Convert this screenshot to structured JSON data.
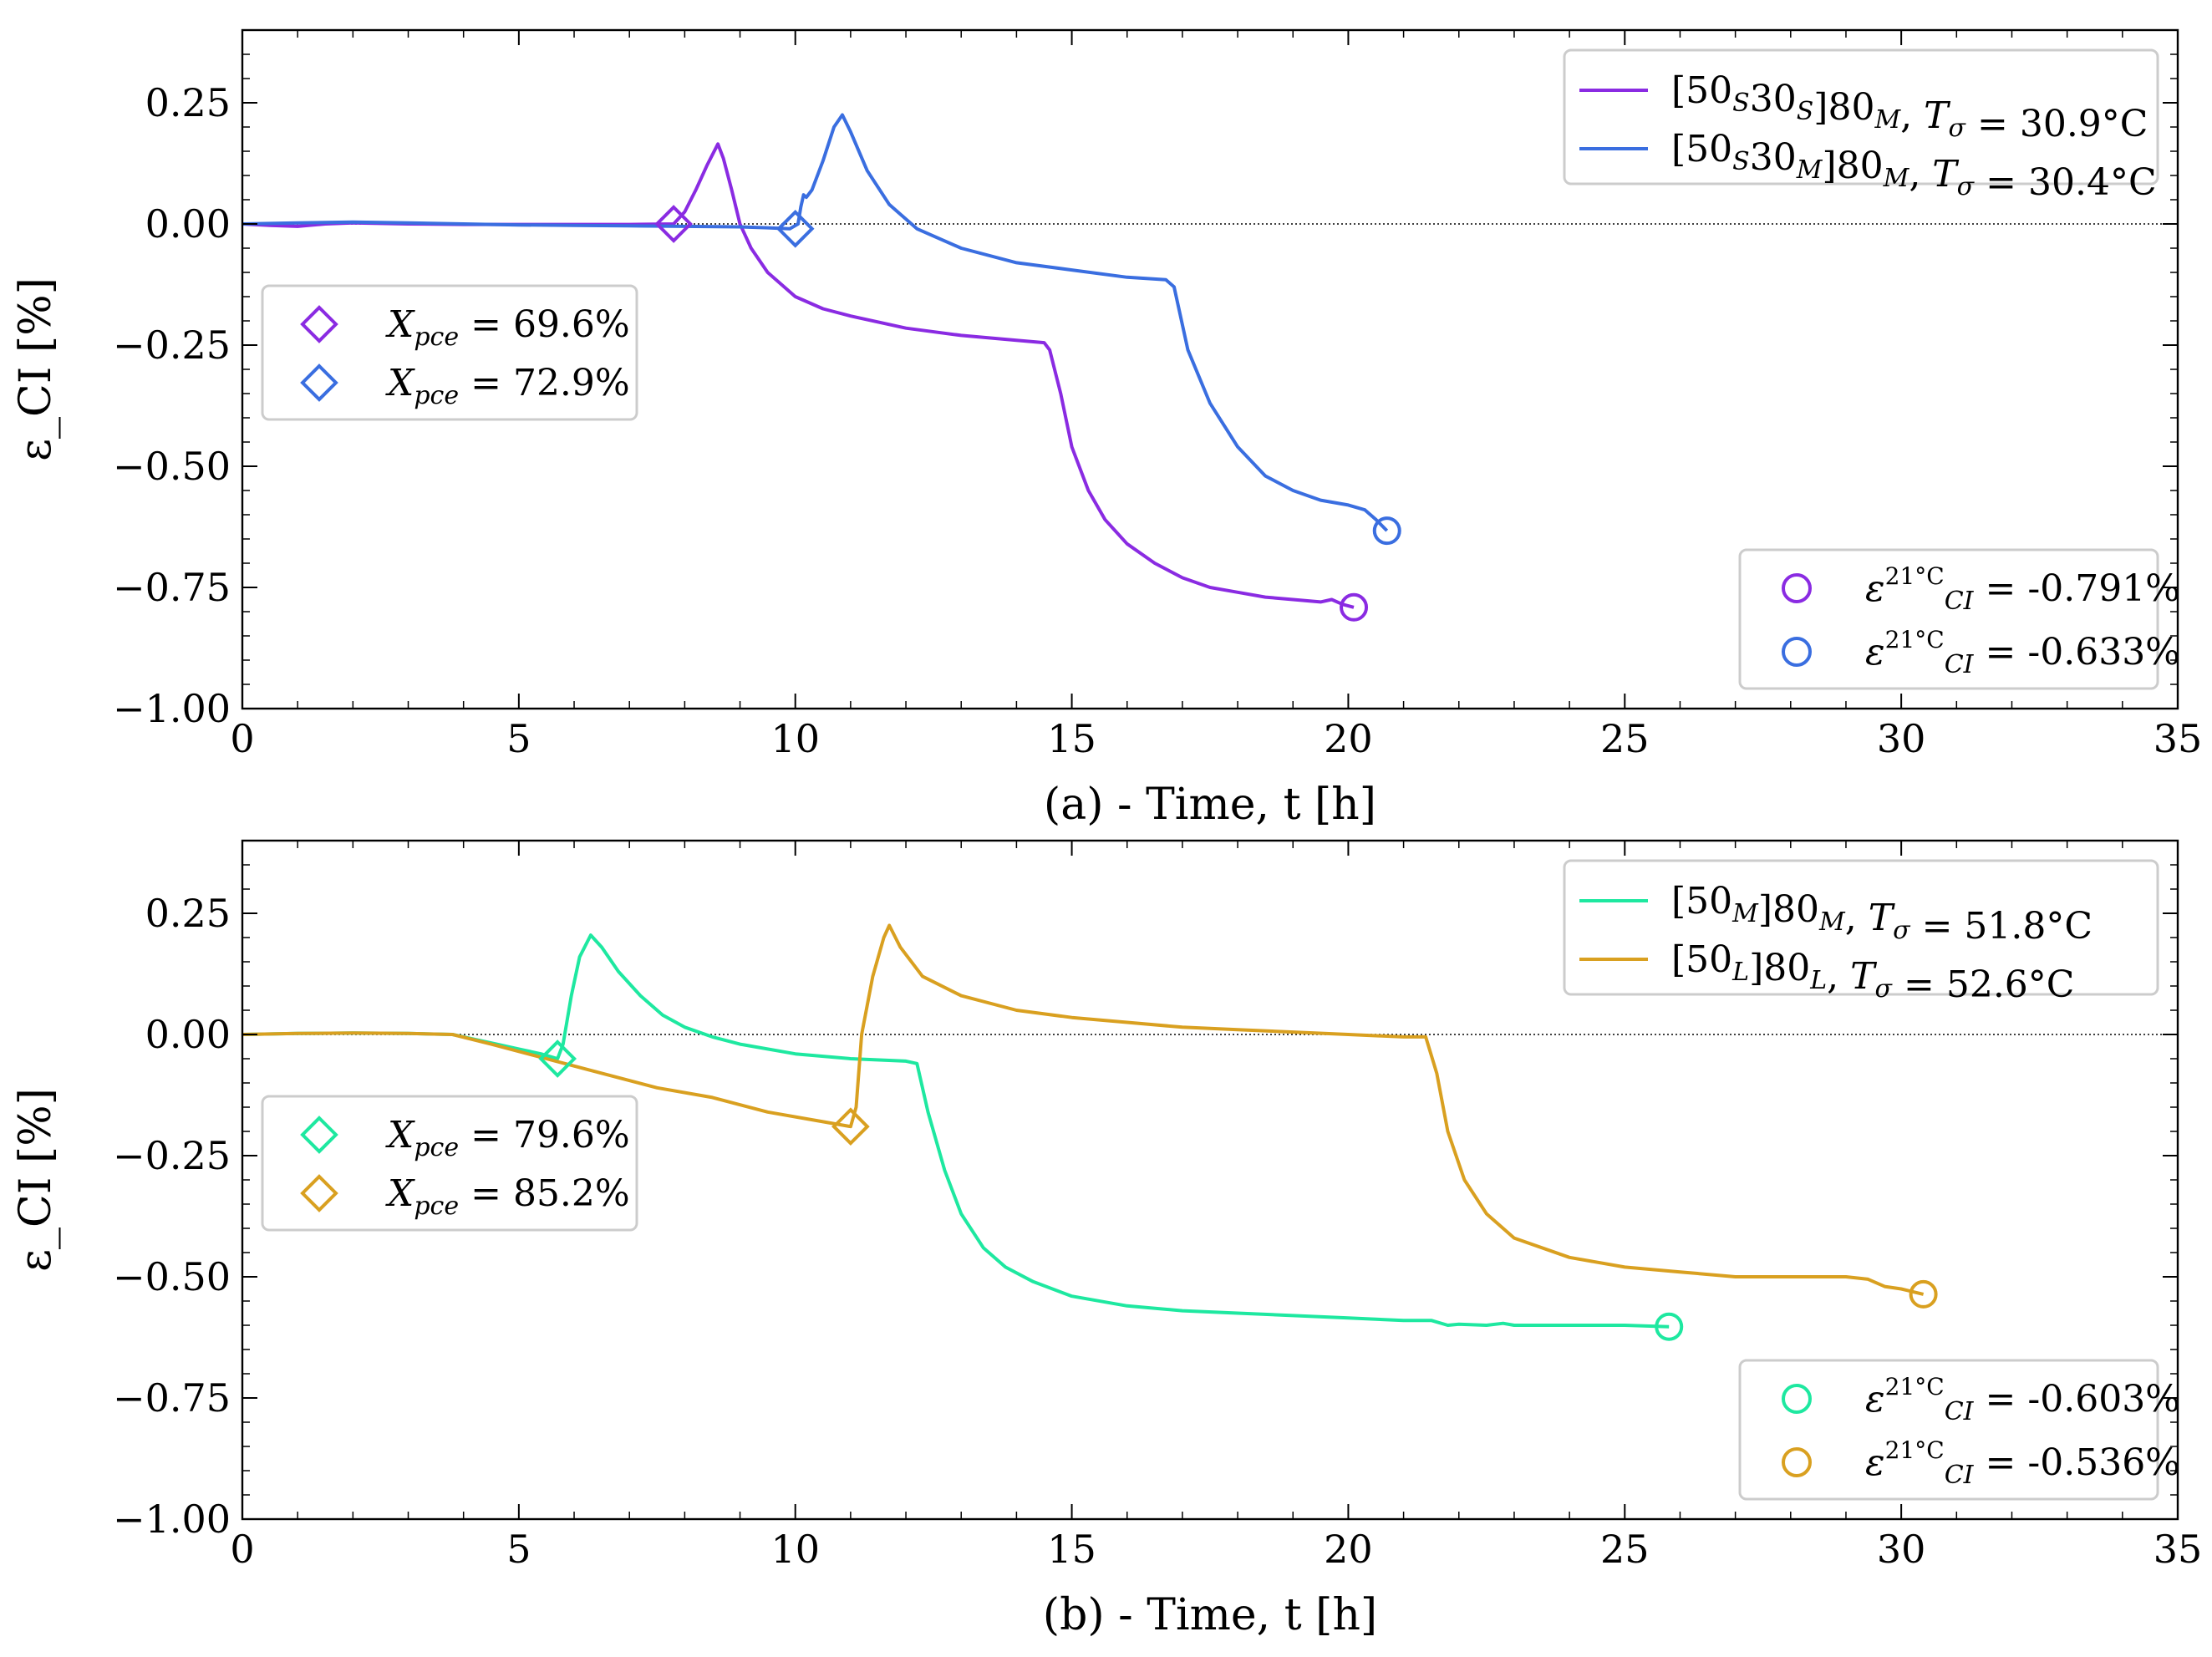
{
  "chart_data": [
    {
      "type": "line",
      "panel": "a",
      "xlabel": "(a) - Time, t [h]",
      "ylabel": "ε_CI [%]",
      "xlim": [
        0,
        35
      ],
      "ylim": [
        -1.0,
        0.4
      ],
      "xticks": [
        0,
        5,
        10,
        15,
        20,
        25,
        30,
        35
      ],
      "yticks": [
        0.25,
        0.0,
        -0.25,
        -0.5,
        -0.75,
        -1.0
      ],
      "xtick_labels": [
        "0",
        "5",
        "10",
        "15",
        "20",
        "25",
        "30",
        "35"
      ],
      "ytick_labels": [
        "0.25",
        "0.00",
        "−0.25",
        "−0.50",
        "−0.75",
        "−1.00"
      ],
      "series": [
        {
          "name": "[50S30S]80M, Tσ = 30.9°C",
          "color": "#8a2be2",
          "x": [
            0,
            0.5,
            1.0,
            1.5,
            2,
            3,
            4,
            5,
            6,
            7,
            7.8,
            8.0,
            8.2,
            8.4,
            8.6,
            8.7,
            8.85,
            9.0,
            9.2,
            9.5,
            10,
            10.5,
            11,
            12,
            13,
            14,
            14.5,
            14.6,
            14.8,
            15,
            15.3,
            15.6,
            16,
            16.5,
            17,
            17.5,
            18,
            18.5,
            19,
            19.5,
            19.7,
            19.9,
            20.1
          ],
          "y": [
            0.0,
            -0.003,
            -0.005,
            0.0,
            0.002,
            0.0,
            -0.001,
            -0.001,
            -0.001,
            -0.001,
            0.0,
            0.025,
            0.07,
            0.12,
            0.165,
            0.135,
            0.07,
            0.0,
            -0.05,
            -0.1,
            -0.15,
            -0.175,
            -0.19,
            -0.215,
            -0.23,
            -0.24,
            -0.245,
            -0.26,
            -0.35,
            -0.46,
            -0.55,
            -0.61,
            -0.66,
            -0.7,
            -0.73,
            -0.75,
            -0.76,
            -0.77,
            -0.775,
            -0.78,
            -0.775,
            -0.785,
            -0.791
          ]
        },
        {
          "name": "[50S30M]80M, Tσ = 30.4°C",
          "color": "#3a6ee0",
          "x": [
            0,
            1,
            2,
            3,
            4,
            5,
            6,
            7,
            8,
            9,
            9.5,
            9.9,
            10.05,
            10.1,
            10.15,
            10.2,
            10.3,
            10.5,
            10.7,
            10.85,
            11.0,
            11.3,
            11.7,
            12.2,
            13,
            14,
            15,
            16,
            16.7,
            16.85,
            17.1,
            17.5,
            18,
            18.5,
            19,
            19.5,
            20,
            20.3,
            20.5,
            20.7
          ],
          "y": [
            0.0,
            0.002,
            0.004,
            0.002,
            0.0,
            -0.002,
            -0.003,
            -0.004,
            -0.005,
            -0.006,
            -0.008,
            -0.01,
            0.0,
            0.035,
            0.06,
            0.055,
            0.07,
            0.13,
            0.2,
            0.225,
            0.19,
            0.11,
            0.04,
            -0.01,
            -0.05,
            -0.08,
            -0.095,
            -0.11,
            -0.115,
            -0.13,
            -0.26,
            -0.37,
            -0.46,
            -0.52,
            -0.55,
            -0.57,
            -0.58,
            -0.59,
            -0.61,
            -0.633
          ]
        }
      ],
      "markers": [
        {
          "type": "diamond",
          "x": 7.8,
          "y": 0.0,
          "color": "#8a2be2"
        },
        {
          "type": "diamond",
          "x": 10.0,
          "y": -0.01,
          "color": "#3a6ee0"
        },
        {
          "type": "circle",
          "x": 20.1,
          "y": -0.791,
          "color": "#8a2be2"
        },
        {
          "type": "circle",
          "x": 20.7,
          "y": -0.633,
          "color": "#3a6ee0"
        }
      ],
      "legend_series": [
        {
          "label": "[50S30S]80M, Tσ = 30.9°C",
          "color": "#8a2be2",
          "parts": [
            "[50",
            "S",
            "30",
            "S",
            "]80",
            "M",
            ", ",
            "T",
            "σ",
            " = 30.9°C"
          ]
        },
        {
          "label": "[50S30M]80M, Tσ = 30.4°C",
          "color": "#3a6ee0",
          "parts": [
            "[50",
            "S",
            "30",
            "M",
            "]80",
            "M",
            ", ",
            "T",
            "σ",
            " = 30.4°C"
          ]
        }
      ],
      "legend_xpce": [
        {
          "label": "X_pce = 69.6%",
          "value": "= 69.6%",
          "color": "#8a2be2"
        },
        {
          "label": "X_pce = 72.9%",
          "value": "= 72.9%",
          "color": "#3a6ee0"
        }
      ],
      "legend_eps": [
        {
          "label": "ε_CI^21°C = -0.791%",
          "value": "= -0.791%",
          "color": "#8a2be2"
        },
        {
          "label": "ε_CI^21°C = -0.633%",
          "value": "= -0.633%",
          "color": "#3a6ee0"
        }
      ]
    },
    {
      "type": "line",
      "panel": "b",
      "xlabel": "(b) - Time, t [h]",
      "ylabel": "ε_CI [%]",
      "xlim": [
        0,
        35
      ],
      "ylim": [
        -1.0,
        0.4
      ],
      "xticks": [
        0,
        5,
        10,
        15,
        20,
        25,
        30,
        35
      ],
      "yticks": [
        0.25,
        0.0,
        -0.25,
        -0.5,
        -0.75,
        -1.0
      ],
      "xtick_labels": [
        "0",
        "5",
        "10",
        "15",
        "20",
        "25",
        "30",
        "35"
      ],
      "ytick_labels": [
        "0.25",
        "0.00",
        "−0.25",
        "−0.50",
        "−0.75",
        "−1.00"
      ],
      "series": [
        {
          "name": "[50M]80M, Tσ = 51.8°C",
          "color": "#1ee8a0",
          "x": [
            0,
            1,
            2,
            3,
            3.8,
            4.2,
            4.6,
            5.0,
            5.4,
            5.7,
            5.8,
            5.95,
            6.1,
            6.3,
            6.5,
            6.8,
            7.2,
            7.6,
            8.0,
            8.5,
            9,
            10,
            11,
            12,
            12.2,
            12.4,
            12.7,
            13,
            13.4,
            13.8,
            14.3,
            15,
            16,
            17,
            18,
            19,
            20,
            21,
            21.5,
            21.8,
            22,
            22.5,
            22.8,
            23,
            24,
            25,
            25.8
          ],
          "y": [
            0.0,
            0.002,
            0.003,
            0.002,
            0.0,
            -0.01,
            -0.02,
            -0.03,
            -0.04,
            -0.05,
            -0.02,
            0.08,
            0.16,
            0.205,
            0.18,
            0.13,
            0.08,
            0.04,
            0.015,
            -0.005,
            -0.02,
            -0.04,
            -0.05,
            -0.055,
            -0.06,
            -0.16,
            -0.28,
            -0.37,
            -0.44,
            -0.48,
            -0.51,
            -0.54,
            -0.56,
            -0.57,
            -0.575,
            -0.58,
            -0.585,
            -0.59,
            -0.59,
            -0.6,
            -0.598,
            -0.6,
            -0.596,
            -0.6,
            -0.6,
            -0.6,
            -0.603
          ]
        },
        {
          "name": "[50L]80L, Tσ = 52.6°C",
          "color": "#d9a020",
          "x": [
            0,
            1,
            2,
            3,
            3.8,
            4.5,
            5.5,
            6.5,
            7.5,
            8.5,
            9.5,
            10.5,
            11.0,
            11.1,
            11.2,
            11.4,
            11.6,
            11.7,
            11.9,
            12.3,
            13,
            14,
            15,
            16,
            17,
            18,
            19,
            20,
            21,
            21.4,
            21.6,
            21.8,
            22.1,
            22.5,
            23,
            24,
            25,
            26,
            27,
            28,
            29,
            29.4,
            29.7,
            30,
            30.4
          ],
          "y": [
            0.0,
            0.002,
            0.003,
            0.002,
            0.0,
            -0.02,
            -0.05,
            -0.08,
            -0.11,
            -0.13,
            -0.16,
            -0.18,
            -0.19,
            -0.15,
            0.0,
            0.12,
            0.2,
            0.225,
            0.18,
            0.12,
            0.08,
            0.05,
            0.035,
            0.025,
            0.015,
            0.01,
            0.005,
            0.0,
            -0.005,
            -0.005,
            -0.08,
            -0.2,
            -0.3,
            -0.37,
            -0.42,
            -0.46,
            -0.48,
            -0.49,
            -0.5,
            -0.5,
            -0.5,
            -0.505,
            -0.52,
            -0.525,
            -0.536
          ]
        }
      ],
      "markers": [
        {
          "type": "diamond",
          "x": 5.7,
          "y": -0.05,
          "color": "#1ee8a0"
        },
        {
          "type": "diamond",
          "x": 11.0,
          "y": -0.19,
          "color": "#d9a020"
        },
        {
          "type": "circle",
          "x": 25.8,
          "y": -0.603,
          "color": "#1ee8a0"
        },
        {
          "type": "circle",
          "x": 30.4,
          "y": -0.536,
          "color": "#d9a020"
        }
      ],
      "legend_series": [
        {
          "label": "[50M]80M, Tσ = 51.8°C",
          "color": "#1ee8a0",
          "parts": [
            "[50",
            "M",
            "]80",
            "M",
            ", ",
            "T",
            "σ",
            " = 51.8°C"
          ]
        },
        {
          "label": "[50L]80L, Tσ = 52.6°C",
          "color": "#d9a020",
          "parts": [
            "[50",
            "L",
            "]80",
            "L",
            ", ",
            "T",
            "σ",
            " = 52.6°C"
          ]
        }
      ],
      "legend_xpce": [
        {
          "label": "X_pce = 79.6%",
          "value": "= 79.6%",
          "color": "#1ee8a0"
        },
        {
          "label": "X_pce = 85.2%",
          "value": "= 85.2%",
          "color": "#d9a020"
        }
      ],
      "legend_eps": [
        {
          "label": "ε_CI^21°C = -0.603%",
          "value": "= -0.603%",
          "color": "#1ee8a0"
        },
        {
          "label": "ε_CI^21°C = -0.536%",
          "value": "= -0.536%",
          "color": "#d9a020"
        }
      ]
    }
  ]
}
